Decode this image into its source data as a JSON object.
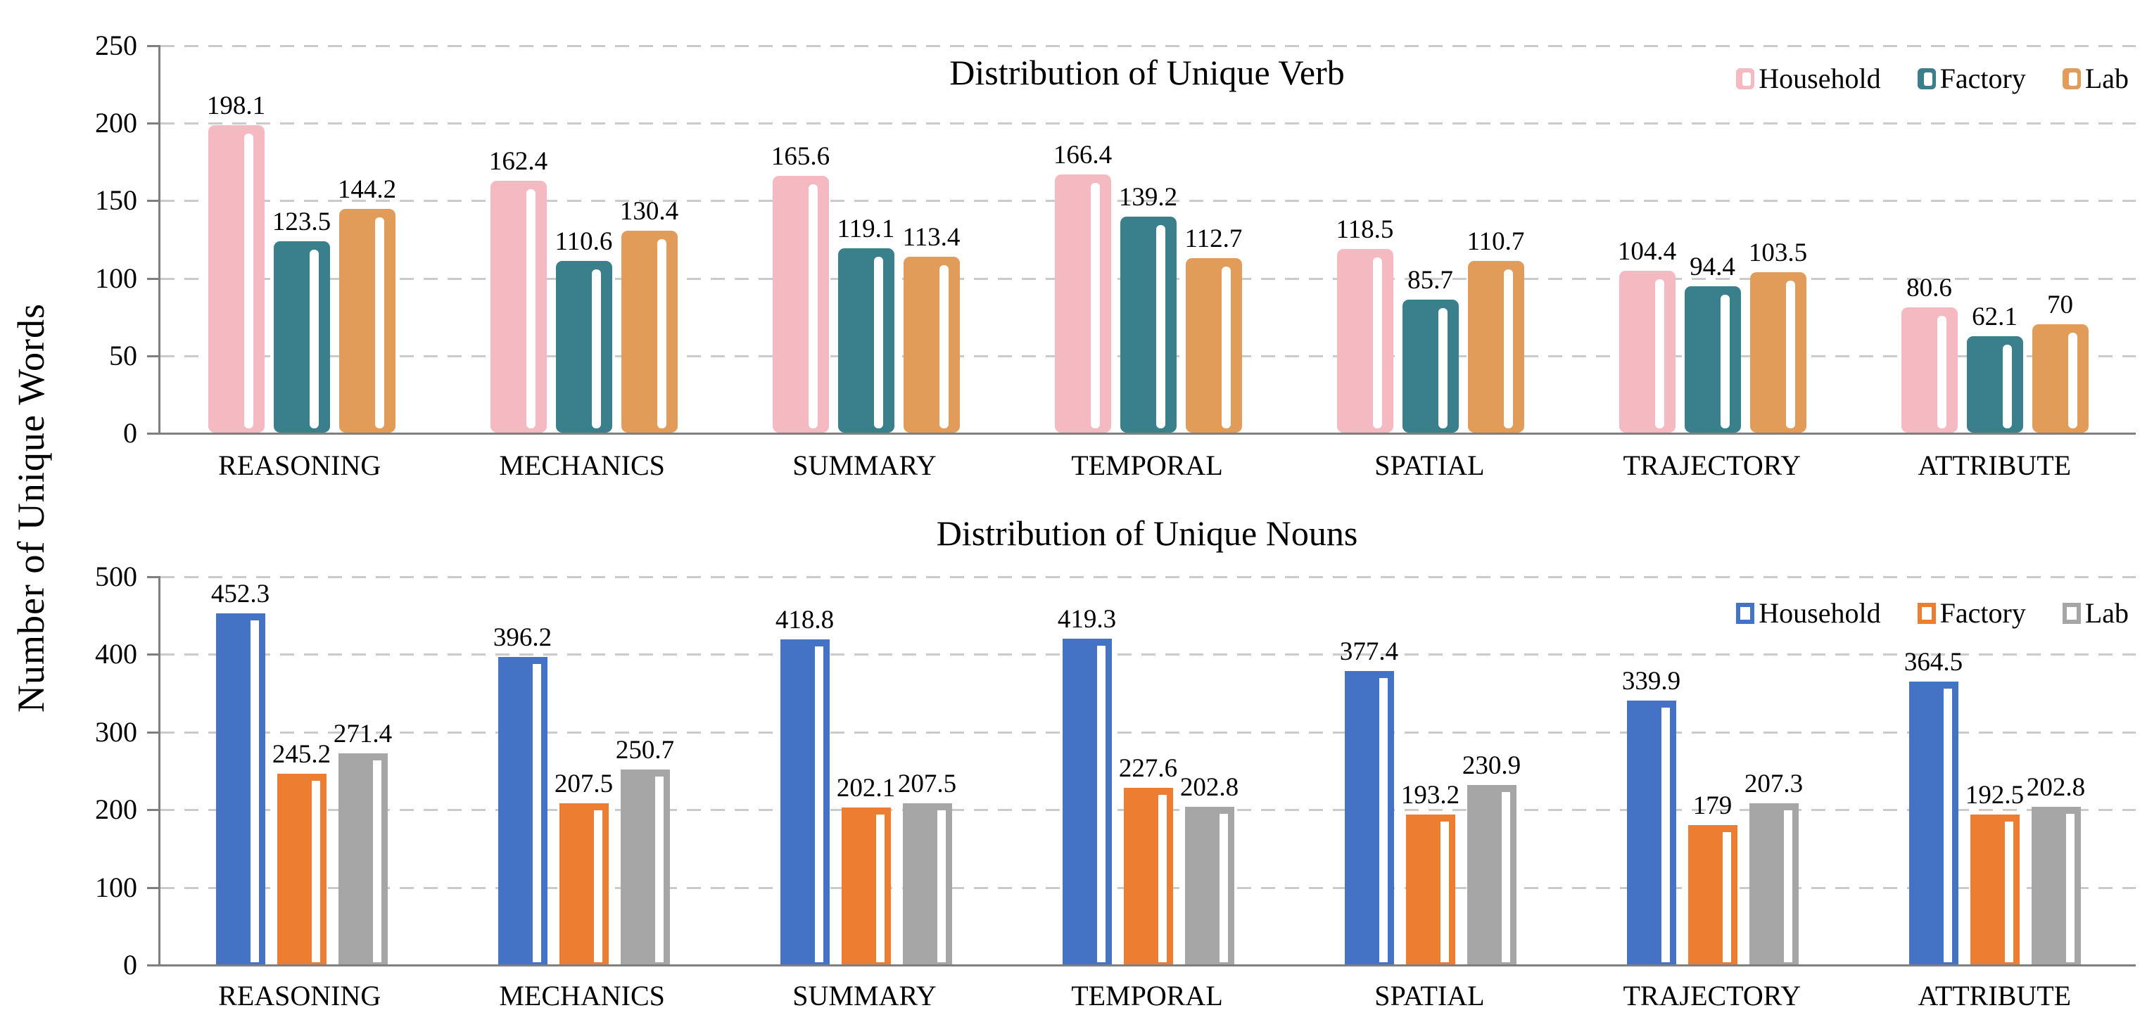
{
  "figure": {
    "ylabel": "Number of Unique Words",
    "background": "#ffffff",
    "grid_color": "#cbcbcb",
    "axis_color": "#7f7f7f"
  },
  "chart_data": [
    {
      "type": "bar",
      "title": "Distribution of Unique Verb",
      "categories": [
        "REASONING",
        "MECHANICS",
        "SUMMARY",
        "TEMPORAL",
        "SPATIAL",
        "TRAJECTORY",
        "ATTRIBUTE"
      ],
      "series": [
        {
          "name": "Household",
          "color": "#F5B9C2",
          "values": [
            198.1,
            162.4,
            165.6,
            166.4,
            118.5,
            104.4,
            80.6
          ]
        },
        {
          "name": "Factory",
          "color": "#3A7F8C",
          "values": [
            123.5,
            110.6,
            119.1,
            139.2,
            85.7,
            94.4,
            62.1
          ]
        },
        {
          "name": "Lab",
          "color": "#E29C59",
          "values": [
            144.2,
            130.4,
            113.4,
            112.7,
            110.7,
            103.5,
            70
          ]
        }
      ],
      "ylim": [
        0,
        250
      ],
      "yticks": [
        0,
        50,
        100,
        150,
        200,
        250
      ],
      "grid": "dashed horizontal",
      "legend_position": "top-right inside",
      "bar_corner": "rounded"
    },
    {
      "type": "bar",
      "title": "Distribution of Unique Nouns",
      "categories": [
        "REASONING",
        "MECHANICS",
        "SUMMARY",
        "TEMPORAL",
        "SPATIAL",
        "TRAJECTORY",
        "ATTRIBUTE"
      ],
      "series": [
        {
          "name": "Household",
          "color": "#4472C4",
          "values": [
            452.3,
            396.2,
            418.8,
            419.3,
            377.4,
            339.9,
            364.5
          ]
        },
        {
          "name": "Factory",
          "color": "#ED7D31",
          "values": [
            245.2,
            207.5,
            202.1,
            227.6,
            193.2,
            179,
            192.5
          ]
        },
        {
          "name": "Lab",
          "color": "#A6A6A6",
          "values": [
            271.4,
            250.7,
            207.5,
            202.8,
            230.9,
            207.3,
            202.8
          ]
        }
      ],
      "ylim": [
        0,
        500
      ],
      "yticks": [
        0,
        100,
        200,
        300,
        400,
        500
      ],
      "grid": "dashed horizontal",
      "legend_position": "top-right inside",
      "bar_corner": "square"
    }
  ]
}
